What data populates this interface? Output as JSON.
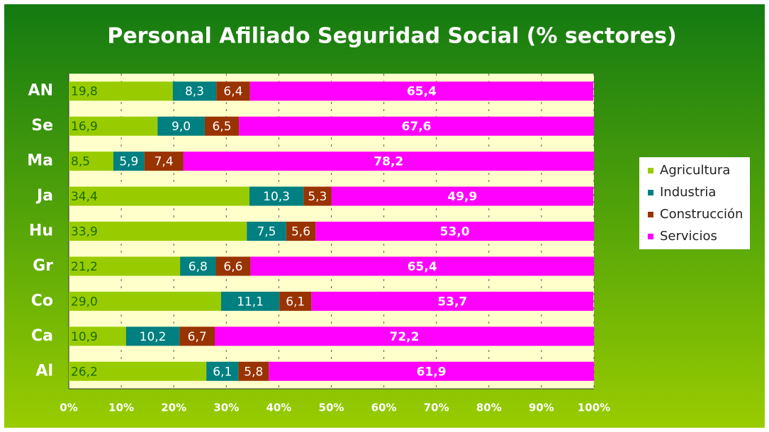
{
  "chart_data": {
    "type": "bar",
    "orientation": "horizontal",
    "stacked": true,
    "title": "Personal Afiliado Seguridad Social (% sectores)",
    "categories": [
      "AN",
      "Se",
      "Ma",
      "Ja",
      "Hu",
      "Gr",
      "Co",
      "Ca",
      "Al"
    ],
    "series": [
      {
        "name": "Agricultura",
        "color": "#99cc00",
        "values": [
          19.8,
          16.9,
          8.5,
          34.4,
          33.9,
          21.2,
          29.0,
          10.9,
          26.2
        ],
        "value_labels": [
          "19,8",
          "16,9",
          "8,5",
          "34,4",
          "33,9",
          "21,2",
          "29,0",
          "10,9",
          "26,2"
        ]
      },
      {
        "name": "Industria",
        "color": "#008080",
        "values": [
          8.3,
          9.0,
          5.9,
          10.3,
          7.5,
          6.8,
          11.1,
          10.2,
          6.1
        ],
        "value_labels": [
          "8,3",
          "9,0",
          "5,9",
          "10,3",
          "7,5",
          "6,8",
          "11,1",
          "10,2",
          "6,1"
        ]
      },
      {
        "name": "Construcción",
        "color": "#993300",
        "values": [
          6.4,
          6.5,
          7.4,
          5.3,
          5.6,
          6.6,
          6.1,
          6.7,
          5.8
        ],
        "value_labels": [
          "6,4",
          "6,5",
          "7,4",
          "5,3",
          "5,6",
          "6,6",
          "6,1",
          "6,7",
          "5,8"
        ]
      },
      {
        "name": "Servicios",
        "color": "#ff00ff",
        "values": [
          65.4,
          67.6,
          78.2,
          49.9,
          53.0,
          65.4,
          53.7,
          72.2,
          61.9
        ],
        "value_labels": [
          "65,4",
          "67,6",
          "78,2",
          "49,9",
          "53,0",
          "65,4",
          "53,7",
          "72,2",
          "61,9"
        ]
      }
    ],
    "xlim": [
      0,
      100
    ],
    "xticks": [
      {
        "value": 0,
        "label": "0%"
      },
      {
        "value": 10,
        "label": "10%"
      },
      {
        "value": 20,
        "label": "20%"
      },
      {
        "value": 30,
        "label": "30%"
      },
      {
        "value": 40,
        "label": "40%"
      },
      {
        "value": 50,
        "label": "50%"
      },
      {
        "value": 60,
        "label": "60%"
      },
      {
        "value": 70,
        "label": "70%"
      },
      {
        "value": 80,
        "label": "80%"
      },
      {
        "value": 90,
        "label": "90%"
      },
      {
        "value": 100,
        "label": "100%"
      }
    ],
    "grid": true,
    "legend": "right"
  }
}
